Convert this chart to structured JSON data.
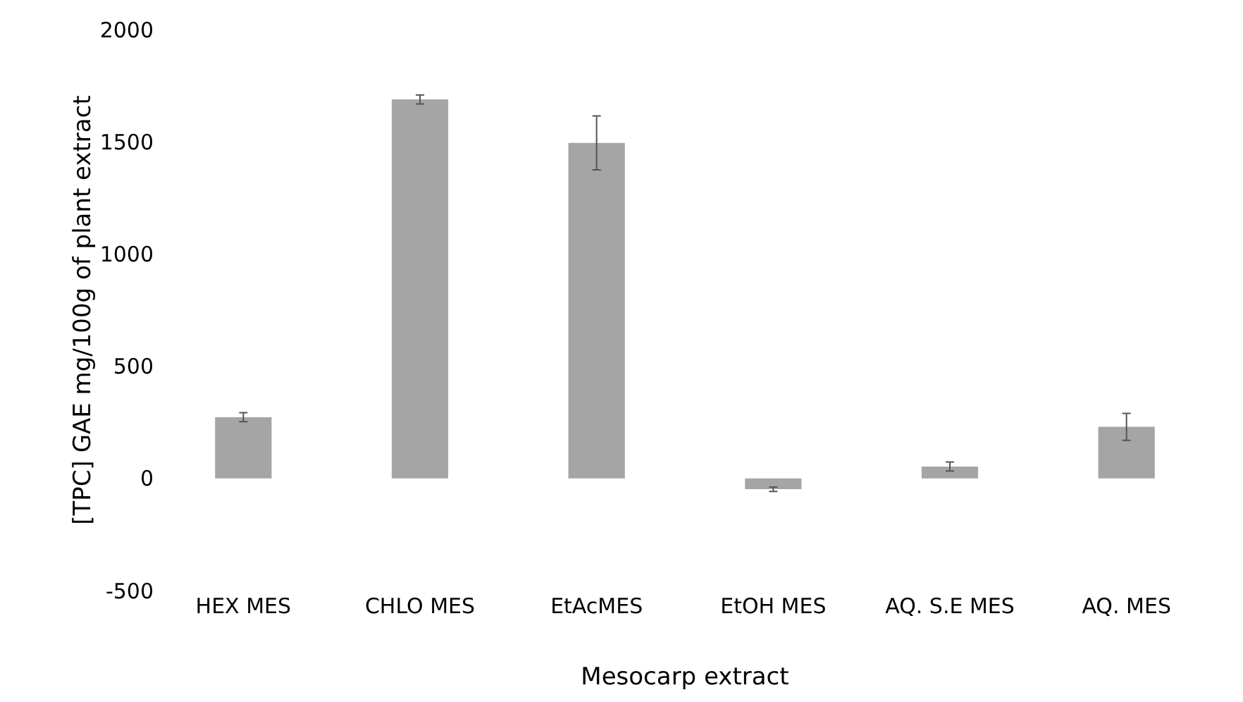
{
  "chart_data": {
    "type": "bar",
    "xlabel": "Mesocarp extract",
    "ylabel": "[TPC] GAE mg/100g of plant extract",
    "categories": [
      "HEX MES",
      "CHLO MES",
      "EtAcMES",
      "EtOH MES",
      "AQ. S.E MES",
      "AQ. MES"
    ],
    "values": [
      273,
      1689,
      1495,
      -48,
      53,
      230
    ],
    "errors": [
      20,
      20,
      120,
      10,
      20,
      60
    ],
    "color": "#a5a5a5",
    "ylim": [
      -500,
      2000
    ],
    "yticks": [
      -500,
      0,
      500,
      1000,
      1500,
      2000
    ],
    "grid": false
  }
}
